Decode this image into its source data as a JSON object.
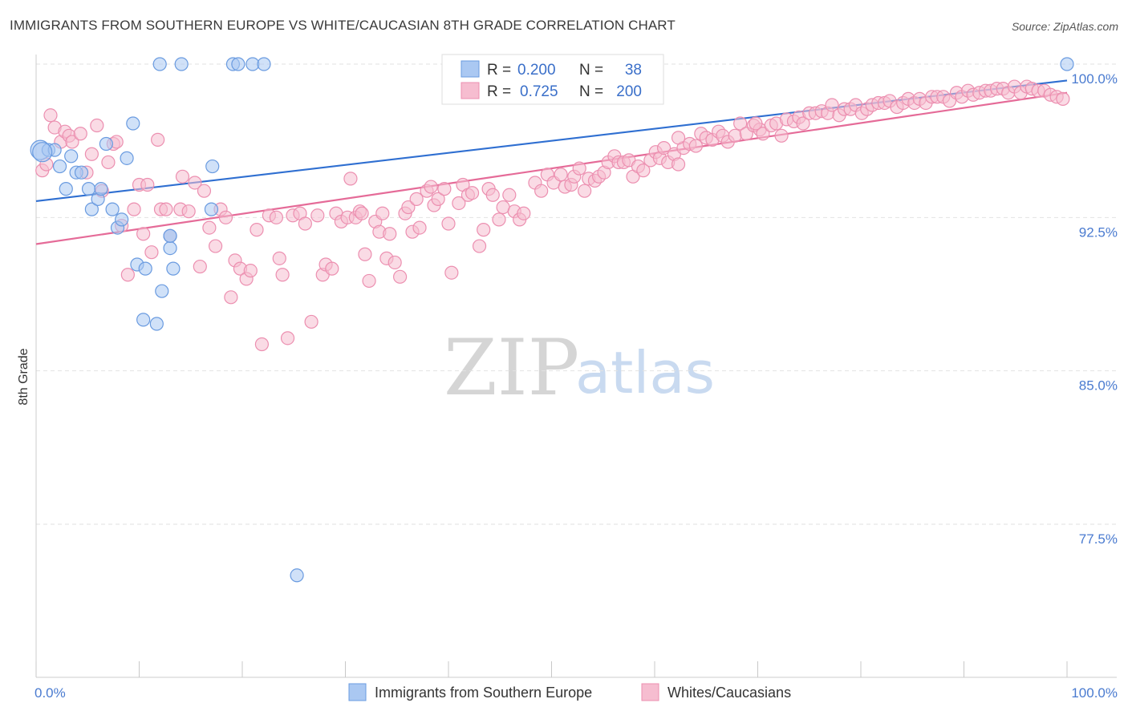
{
  "title": "IMMIGRANTS FROM SOUTHERN EUROPE VS WHITE/CAUCASIAN 8TH GRADE CORRELATION CHART",
  "source": "Source: ZipAtlas.com",
  "watermark": {
    "zip": "ZIP",
    "atlas": "atlas"
  },
  "legend_top": [
    {
      "r_label": "R =",
      "r_value": "0.200",
      "n_label": "N =",
      "n_value": "38"
    },
    {
      "r_label": "R =",
      "r_value": "0.725",
      "n_label": "N =",
      "n_value": "200"
    }
  ],
  "chart_data": {
    "type": "scatter",
    "title": "IMMIGRANTS FROM SOUTHERN EUROPE VS WHITE/CAUCASIAN 8TH GRADE CORRELATION CHART",
    "xlabel": "",
    "ylabel": "8th Grade",
    "xlim": [
      0,
      100
    ],
    "ylim": [
      70.0,
      101.0
    ],
    "x_tick_labels": [
      "0.0%",
      "100.0%"
    ],
    "y_ticks": [
      77.5,
      85.0,
      92.5,
      100.0
    ],
    "y_tick_labels": [
      "77.5%",
      "85.0%",
      "92.5%",
      "100.0%"
    ],
    "grid": true,
    "legend_position": "top-center",
    "colors": {
      "blue_fill": "#aac8f2",
      "blue_stroke": "#6a9be0",
      "blue_line": "#2f6fd1",
      "pink_fill": "#f6bdd0",
      "pink_stroke": "#ec8fb0",
      "pink_line": "#e56b98"
    },
    "series": [
      {
        "name": "Immigrants from Southern Europe",
        "color": "#6a9be0",
        "trend": {
          "x": [
            0,
            100
          ],
          "y": [
            93.3,
            99.2
          ]
        },
        "points": [
          [
            0.4,
            95.8
          ],
          [
            1.2,
            95.8
          ],
          [
            1.8,
            95.8
          ],
          [
            2.3,
            95.0
          ],
          [
            2.9,
            93.9
          ],
          [
            3.4,
            95.5
          ],
          [
            3.9,
            94.7
          ],
          [
            4.4,
            94.7
          ],
          [
            5.1,
            93.9
          ],
          [
            5.4,
            92.9
          ],
          [
            6.0,
            93.4
          ],
          [
            6.3,
            93.9
          ],
          [
            6.8,
            96.1
          ],
          [
            7.4,
            92.9
          ],
          [
            7.9,
            92.0
          ],
          [
            8.3,
            92.4
          ],
          [
            8.8,
            95.4
          ],
          [
            9.4,
            97.1
          ],
          [
            9.8,
            90.2
          ],
          [
            10.6,
            90.0
          ],
          [
            10.4,
            87.5
          ],
          [
            11.7,
            87.3
          ],
          [
            12.2,
            88.9
          ],
          [
            13.0,
            91.0
          ],
          [
            13.3,
            90.0
          ],
          [
            12.0,
            100.0
          ],
          [
            14.1,
            100.0
          ],
          [
            17.0,
            92.9
          ],
          [
            17.1,
            95.0
          ],
          [
            19.1,
            100.0
          ],
          [
            19.6,
            100.0
          ],
          [
            21.0,
            100.0
          ],
          [
            22.1,
            100.0
          ],
          [
            13.0,
            91.6
          ],
          [
            0.6,
            95.7
          ],
          [
            25.3,
            75.0
          ],
          [
            100.0,
            100.0
          ],
          [
            13.0,
            91.6
          ]
        ]
      },
      {
        "name": "Whites/Caucasians",
        "color": "#ec8fb0",
        "trend": {
          "x": [
            0,
            100
          ],
          "y": [
            91.2,
            98.6
          ]
        },
        "points": [
          [
            0.6,
            94.8
          ],
          [
            1.0,
            95.1
          ],
          [
            1.4,
            97.5
          ],
          [
            1.8,
            96.9
          ],
          [
            2.4,
            96.2
          ],
          [
            2.8,
            96.7
          ],
          [
            3.2,
            96.5
          ],
          [
            3.5,
            96.2
          ],
          [
            4.3,
            96.6
          ],
          [
            4.9,
            94.7
          ],
          [
            5.4,
            95.6
          ],
          [
            5.9,
            97.0
          ],
          [
            6.4,
            93.8
          ],
          [
            7.0,
            95.2
          ],
          [
            7.5,
            96.1
          ],
          [
            7.8,
            96.2
          ],
          [
            8.3,
            92.1
          ],
          [
            8.9,
            89.7
          ],
          [
            9.5,
            92.9
          ],
          [
            10.0,
            94.1
          ],
          [
            10.4,
            91.7
          ],
          [
            10.8,
            94.1
          ],
          [
            11.2,
            90.8
          ],
          [
            11.8,
            96.3
          ],
          [
            12.1,
            92.9
          ],
          [
            12.6,
            92.9
          ],
          [
            13.0,
            91.6
          ],
          [
            14.0,
            92.9
          ],
          [
            14.2,
            94.5
          ],
          [
            14.8,
            92.8
          ],
          [
            15.4,
            94.2
          ],
          [
            15.9,
            90.1
          ],
          [
            16.3,
            93.8
          ],
          [
            16.8,
            92.0
          ],
          [
            17.4,
            91.1
          ],
          [
            17.9,
            92.9
          ],
          [
            18.4,
            92.5
          ],
          [
            18.9,
            88.6
          ],
          [
            19.3,
            90.4
          ],
          [
            19.8,
            90.0
          ],
          [
            20.4,
            89.5
          ],
          [
            20.8,
            89.9
          ],
          [
            21.4,
            91.9
          ],
          [
            21.9,
            86.3
          ],
          [
            22.6,
            92.6
          ],
          [
            23.3,
            92.5
          ],
          [
            23.6,
            90.5
          ],
          [
            23.9,
            89.7
          ],
          [
            24.4,
            86.6
          ],
          [
            24.9,
            92.6
          ],
          [
            25.6,
            92.7
          ],
          [
            26.1,
            92.2
          ],
          [
            26.7,
            87.4
          ],
          [
            27.3,
            92.6
          ],
          [
            27.8,
            89.7
          ],
          [
            28.1,
            90.2
          ],
          [
            28.7,
            90.0
          ],
          [
            29.1,
            92.7
          ],
          [
            29.6,
            92.3
          ],
          [
            30.2,
            92.5
          ],
          [
            30.5,
            94.4
          ],
          [
            31.0,
            92.5
          ],
          [
            31.4,
            92.8
          ],
          [
            31.9,
            90.7
          ],
          [
            32.3,
            89.4
          ],
          [
            32.9,
            92.3
          ],
          [
            33.3,
            91.8
          ],
          [
            33.6,
            92.7
          ],
          [
            34.0,
            90.5
          ],
          [
            34.3,
            91.7
          ],
          [
            34.8,
            90.3
          ],
          [
            35.3,
            89.6
          ],
          [
            35.8,
            92.7
          ],
          [
            36.1,
            93.0
          ],
          [
            36.5,
            91.8
          ],
          [
            36.9,
            93.4
          ],
          [
            37.2,
            92.0
          ],
          [
            37.9,
            93.8
          ],
          [
            38.3,
            94.0
          ],
          [
            38.6,
            93.1
          ],
          [
            39.0,
            93.4
          ],
          [
            39.6,
            93.9
          ],
          [
            40.0,
            92.2
          ],
          [
            40.3,
            89.8
          ],
          [
            41.0,
            93.2
          ],
          [
            41.4,
            94.1
          ],
          [
            41.9,
            93.6
          ],
          [
            42.3,
            93.7
          ],
          [
            43.0,
            91.1
          ],
          [
            43.4,
            91.9
          ],
          [
            43.9,
            93.9
          ],
          [
            44.3,
            93.6
          ],
          [
            44.9,
            92.4
          ],
          [
            45.3,
            93.0
          ],
          [
            45.9,
            93.6
          ],
          [
            46.4,
            92.8
          ],
          [
            46.9,
            92.4
          ],
          [
            47.3,
            92.7
          ],
          [
            48.4,
            94.2
          ],
          [
            49.0,
            93.8
          ],
          [
            49.6,
            94.6
          ],
          [
            50.2,
            94.2
          ],
          [
            50.9,
            94.6
          ],
          [
            51.3,
            94.0
          ],
          [
            51.9,
            94.1
          ],
          [
            52.2,
            94.5
          ],
          [
            52.7,
            94.9
          ],
          [
            53.2,
            93.8
          ],
          [
            53.6,
            94.4
          ],
          [
            54.2,
            94.3
          ],
          [
            54.6,
            94.5
          ],
          [
            55.1,
            94.7
          ],
          [
            55.5,
            95.2
          ],
          [
            56.1,
            95.5
          ],
          [
            56.5,
            95.2
          ],
          [
            57.0,
            95.2
          ],
          [
            57.5,
            95.3
          ],
          [
            57.9,
            94.5
          ],
          [
            58.4,
            95.0
          ],
          [
            58.9,
            94.8
          ],
          [
            59.6,
            95.3
          ],
          [
            60.1,
            95.7
          ],
          [
            60.5,
            95.4
          ],
          [
            60.9,
            95.9
          ],
          [
            61.3,
            95.2
          ],
          [
            61.9,
            95.6
          ],
          [
            62.3,
            95.1
          ],
          [
            62.8,
            95.9
          ],
          [
            63.4,
            96.1
          ],
          [
            64.0,
            96.0
          ],
          [
            64.5,
            96.6
          ],
          [
            65.0,
            96.4
          ],
          [
            65.6,
            96.3
          ],
          [
            66.2,
            96.7
          ],
          [
            66.6,
            96.5
          ],
          [
            67.1,
            96.2
          ],
          [
            67.8,
            96.5
          ],
          [
            68.3,
            97.1
          ],
          [
            68.9,
            96.6
          ],
          [
            69.6,
            97.0
          ],
          [
            70.2,
            96.8
          ],
          [
            70.5,
            96.6
          ],
          [
            71.3,
            97.0
          ],
          [
            71.8,
            97.1
          ],
          [
            72.3,
            96.5
          ],
          [
            72.8,
            97.3
          ],
          [
            73.5,
            97.2
          ],
          [
            74.0,
            97.4
          ],
          [
            74.4,
            97.1
          ],
          [
            75.0,
            97.6
          ],
          [
            75.6,
            97.6
          ],
          [
            76.2,
            97.7
          ],
          [
            76.8,
            97.6
          ],
          [
            77.2,
            98.0
          ],
          [
            77.9,
            97.5
          ],
          [
            78.4,
            97.8
          ],
          [
            79.0,
            97.8
          ],
          [
            79.5,
            98.0
          ],
          [
            80.1,
            97.6
          ],
          [
            80.6,
            97.8
          ],
          [
            81.1,
            98.0
          ],
          [
            81.7,
            98.1
          ],
          [
            82.3,
            98.1
          ],
          [
            82.8,
            98.2
          ],
          [
            83.5,
            97.9
          ],
          [
            84.1,
            98.1
          ],
          [
            84.6,
            98.3
          ],
          [
            85.2,
            98.1
          ],
          [
            85.7,
            98.3
          ],
          [
            86.3,
            98.1
          ],
          [
            86.9,
            98.4
          ],
          [
            87.4,
            98.4
          ],
          [
            88.0,
            98.4
          ],
          [
            88.6,
            98.2
          ],
          [
            89.3,
            98.6
          ],
          [
            89.8,
            98.4
          ],
          [
            90.4,
            98.7
          ],
          [
            90.9,
            98.5
          ],
          [
            91.5,
            98.6
          ],
          [
            92.1,
            98.7
          ],
          [
            92.6,
            98.7
          ],
          [
            93.2,
            98.8
          ],
          [
            93.8,
            98.8
          ],
          [
            94.3,
            98.6
          ],
          [
            94.9,
            98.9
          ],
          [
            95.5,
            98.6
          ],
          [
            96.1,
            98.9
          ],
          [
            96.6,
            98.8
          ],
          [
            97.2,
            98.7
          ],
          [
            97.8,
            98.7
          ],
          [
            98.4,
            98.5
          ],
          [
            99.0,
            98.4
          ],
          [
            99.6,
            98.3
          ],
          [
            62.3,
            96.4
          ],
          [
            69.8,
            97.1
          ],
          [
            31.6,
            92.7
          ]
        ]
      }
    ]
  }
}
